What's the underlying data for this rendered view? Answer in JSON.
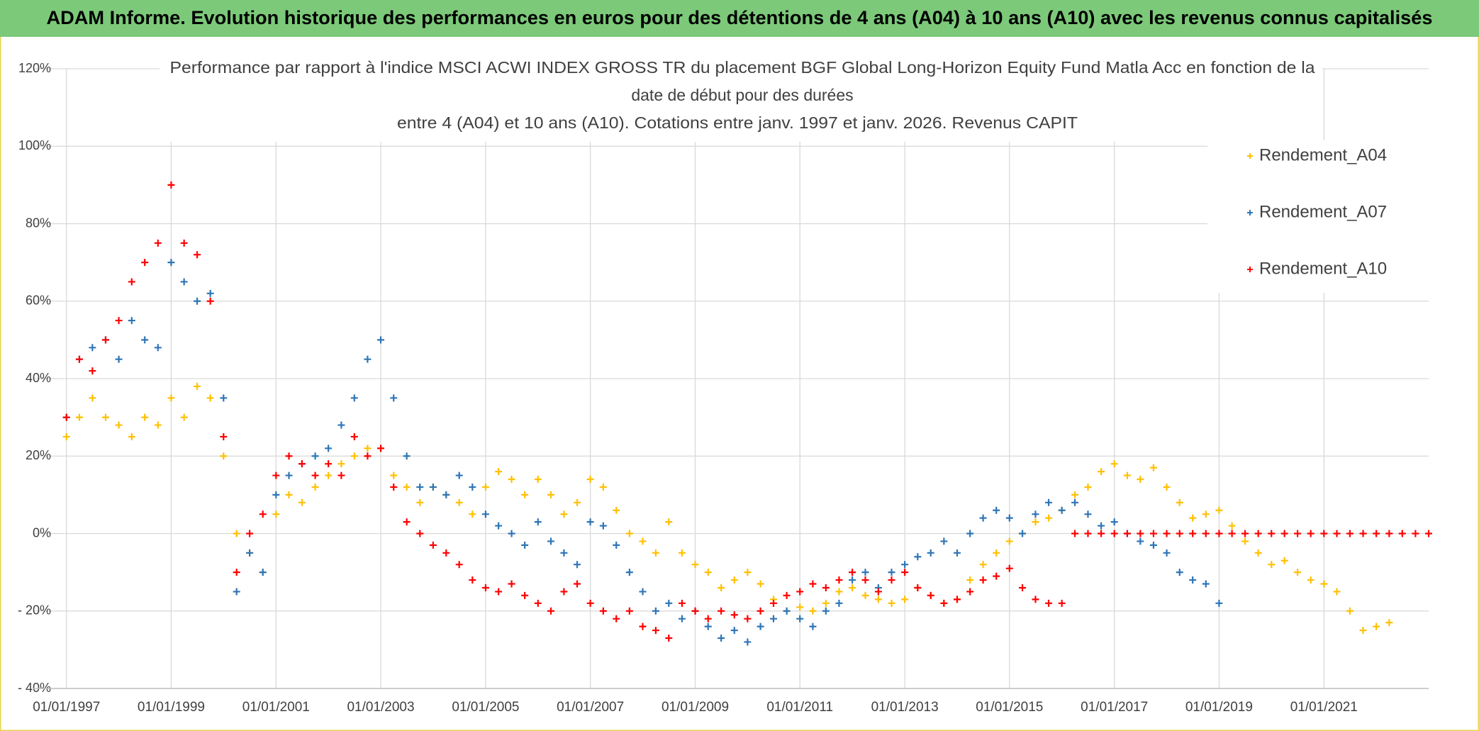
{
  "chart_data": {
    "type": "scatter",
    "header": "ADAM Informe. Evolution historique des performances en euros pour des détentions de 4 ans (A04) à 10 ans (A10) avec les revenus connus capitalisés",
    "title": [
      "Performance par rapport à l'indice MSCI ACWI INDEX GROSS TR  du placement BGF Global Long-Horizon Equity Fund Matla Acc en fonction de la",
      "date de début pour des durées",
      "entre 4 (A04) et 10 ans (A10). Cotations entre janv. 1997 et janv. 2026. Revenus CAPIT"
    ],
    "x": [
      "01/01/1997",
      "01/04/1997",
      "01/07/1997",
      "01/10/1997",
      "01/01/1998",
      "01/04/1998",
      "01/07/1998",
      "01/10/1998",
      "01/01/1999",
      "01/04/1999",
      "01/07/1999",
      "01/10/1999",
      "01/01/2000",
      "01/04/2000",
      "01/07/2000",
      "01/10/2000",
      "01/01/2001",
      "01/04/2001",
      "01/07/2001",
      "01/10/2001",
      "01/01/2002",
      "01/04/2002",
      "01/07/2002",
      "01/10/2002",
      "01/01/2003",
      "01/04/2003",
      "01/07/2003",
      "01/10/2003",
      "01/01/2004",
      "01/04/2004",
      "01/07/2004",
      "01/10/2004",
      "01/01/2005",
      "01/04/2005",
      "01/07/2005",
      "01/10/2005",
      "01/01/2006",
      "01/04/2006",
      "01/07/2006",
      "01/10/2006",
      "01/01/2007",
      "01/04/2007",
      "01/07/2007",
      "01/10/2007",
      "01/01/2008",
      "01/04/2008",
      "01/07/2008",
      "01/10/2008",
      "01/01/2009",
      "01/04/2009",
      "01/07/2009",
      "01/10/2009",
      "01/01/2010",
      "01/04/2010",
      "01/07/2010",
      "01/10/2010",
      "01/01/2011",
      "01/04/2011",
      "01/07/2011",
      "01/10/2011",
      "01/01/2012",
      "01/04/2012",
      "01/07/2012",
      "01/10/2012",
      "01/01/2013",
      "01/04/2013",
      "01/07/2013",
      "01/10/2013",
      "01/01/2014",
      "01/04/2014",
      "01/07/2014",
      "01/10/2014",
      "01/01/2015",
      "01/04/2015",
      "01/07/2015",
      "01/10/2015",
      "01/01/2016",
      "01/04/2016",
      "01/07/2016",
      "01/10/2016",
      "01/01/2017",
      "01/04/2017",
      "01/07/2017",
      "01/10/2017",
      "01/01/2018",
      "01/04/2018",
      "01/07/2018",
      "01/10/2018",
      "01/01/2019",
      "01/04/2019",
      "01/07/2019",
      "01/10/2019",
      "01/01/2020",
      "01/04/2020",
      "01/07/2020",
      "01/10/2020",
      "01/01/2021",
      "01/04/2021",
      "01/07/2021",
      "01/10/2021",
      "01/01/2022",
      "01/04/2022",
      "01/07/2022",
      "01/10/2022",
      "01/01/2023"
    ],
    "series": [
      {
        "name": "Rendement_A04",
        "color": "#ffc000",
        "values": [
          25,
          30,
          35,
          30,
          28,
          25,
          30,
          28,
          35,
          30,
          38,
          35,
          20,
          0,
          -5,
          -10,
          5,
          10,
          8,
          12,
          15,
          18,
          20,
          22,
          22,
          15,
          12,
          8,
          12,
          10,
          8,
          5,
          12,
          16,
          14,
          10,
          14,
          10,
          5,
          8,
          14,
          12,
          6,
          0,
          -2,
          -5,
          3,
          -5,
          -8,
          -10,
          -14,
          -12,
          -10,
          -13,
          -17,
          -20,
          -19,
          -20,
          -18,
          -15,
          -14,
          -16,
          -17,
          -18,
          -17,
          -14,
          -16,
          -18,
          -17,
          -12,
          -8,
          -5,
          -2,
          0,
          3,
          4,
          6,
          10,
          12,
          16,
          18,
          15,
          14,
          17,
          12,
          8,
          4,
          5,
          6,
          2,
          -2,
          -5,
          -8,
          -7,
          -10,
          -12,
          -13,
          -15,
          -20,
          -25,
          -24,
          -23,
          null,
          null,
          null
        ]
      },
      {
        "name": "Rendement_A07",
        "color": "#2e75b6",
        "values": [
          30,
          45,
          48,
          50,
          45,
          55,
          50,
          48,
          70,
          65,
          60,
          62,
          35,
          -15,
          -5,
          -10,
          10,
          15,
          18,
          20,
          22,
          28,
          35,
          45,
          50,
          35,
          20,
          12,
          12,
          10,
          15,
          12,
          5,
          2,
          0,
          -3,
          3,
          -2,
          -5,
          -8,
          3,
          2,
          -3,
          -10,
          -15,
          -20,
          -18,
          -22,
          -20,
          -24,
          -27,
          -25,
          -28,
          -24,
          -22,
          -20,
          -22,
          -24,
          -20,
          -18,
          -12,
          -10,
          -14,
          -10,
          -8,
          -6,
          -5,
          -2,
          -5,
          0,
          4,
          6,
          4,
          0,
          5,
          8,
          6,
          8,
          5,
          2,
          3,
          0,
          -2,
          -3,
          -5,
          -10,
          -12,
          -13,
          -18,
          null,
          null,
          null,
          null,
          null,
          null,
          null,
          null,
          null,
          null,
          null,
          null,
          null,
          null,
          null,
          null
        ]
      },
      {
        "name": "Rendement_A10",
        "color": "#ff0000",
        "values": [
          30,
          45,
          42,
          50,
          55,
          65,
          70,
          75,
          90,
          75,
          72,
          60,
          25,
          -10,
          0,
          5,
          15,
          20,
          18,
          15,
          18,
          15,
          25,
          20,
          22,
          12,
          3,
          0,
          -3,
          -5,
          -8,
          -12,
          -14,
          -15,
          -13,
          -16,
          -18,
          -20,
          -15,
          -13,
          -18,
          -20,
          -22,
          -20,
          -24,
          -25,
          -27,
          -18,
          -20,
          -22,
          -20,
          -21,
          -22,
          -20,
          -18,
          -16,
          -15,
          -13,
          -14,
          -12,
          -10,
          -12,
          -15,
          -12,
          -10,
          -14,
          -16,
          -18,
          -17,
          -15,
          -12,
          -11,
          -9,
          -14,
          -17,
          -18,
          -18,
          0,
          0,
          0,
          0,
          0,
          0,
          0,
          0,
          0,
          0,
          0,
          0,
          0,
          0,
          0,
          0,
          0,
          0,
          0,
          0,
          0,
          0,
          0,
          0,
          0,
          0,
          0,
          0
        ]
      }
    ],
    "xlim": [
      "15/05/1996",
      "01/01/2023"
    ],
    "xticks": [
      "01/01/1997",
      "01/01/1999",
      "01/01/2001",
      "01/01/2003",
      "01/01/2005",
      "01/01/2007",
      "01/01/2009",
      "01/01/2011",
      "01/01/2013",
      "01/01/2015",
      "01/01/2017",
      "01/01/2019",
      "01/01/2021"
    ],
    "ylim": [
      -40,
      120
    ],
    "yticks": [
      {
        "value": -40,
        "label": "- 40%"
      },
      {
        "value": -20,
        "label": "- 20%"
      },
      {
        "value": 0,
        "label": "0%"
      },
      {
        "value": 20,
        "label": "20%"
      },
      {
        "value": 40,
        "label": "40%"
      },
      {
        "value": 60,
        "label": "60%"
      },
      {
        "value": 80,
        "label": "80%"
      },
      {
        "value": 100,
        "label": "100%"
      },
      {
        "value": 120,
        "label": "120%"
      }
    ],
    "grid": true,
    "legend": "top-right"
  }
}
